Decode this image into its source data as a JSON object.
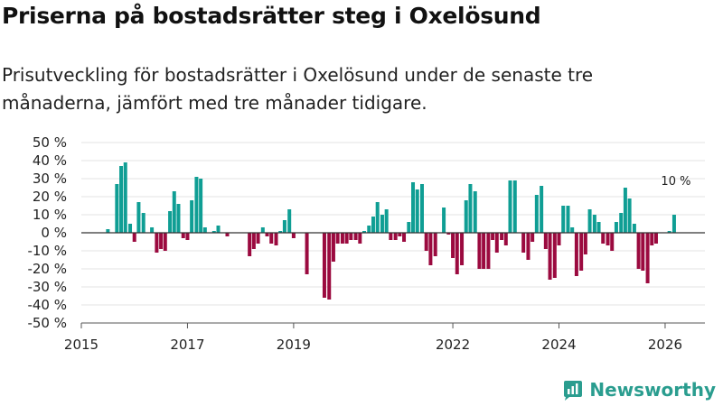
{
  "header": {
    "title": "Priserna på bostadsrätter steg i Oxelösund",
    "subtitle": "Prisutveckling för bostadsrätter i Oxelösund under de senaste tre månaderna, jämfört med tre månader tidigare."
  },
  "brand": {
    "name": "Newsworthy",
    "icon": "newsworthy-logo-icon",
    "color": "#2a9d8f"
  },
  "colors": {
    "positive": "#0f9e94",
    "negative": "#9b0a3f",
    "grid": "#e3e3e3",
    "zero_line": "#333333"
  },
  "chart_data": {
    "type": "bar",
    "title": "Priserna på bostadsrätter steg i Oxelösund",
    "xlabel": "",
    "ylabel": "",
    "ylim": [
      -50,
      50
    ],
    "yticks": [
      50,
      40,
      30,
      20,
      10,
      0,
      -10,
      -20,
      -30,
      -40,
      -50
    ],
    "ytick_suffix": " %",
    "xlim": [
      2015.0,
      2026.75
    ],
    "xticks": [
      2015,
      2017,
      2019,
      2022,
      2024,
      2026
    ],
    "grid": true,
    "annotation": {
      "text": "10 %",
      "x": 2026.17,
      "y": 10
    },
    "x": [
      2015.5,
      2015.67,
      2015.75,
      2015.83,
      2015.92,
      2016.0,
      2016.08,
      2016.17,
      2016.25,
      2016.33,
      2016.42,
      2016.5,
      2016.58,
      2016.67,
      2016.75,
      2016.83,
      2016.92,
      2017.0,
      2017.08,
      2017.17,
      2017.25,
      2017.33,
      2017.42,
      2017.5,
      2017.58,
      2017.67,
      2017.75,
      2018.17,
      2018.25,
      2018.33,
      2018.42,
      2018.5,
      2018.58,
      2018.67,
      2018.75,
      2018.83,
      2018.92,
      2019.0,
      2019.08,
      2019.25,
      2019.58,
      2019.67,
      2019.75,
      2019.83,
      2019.92,
      2020.0,
      2020.08,
      2020.17,
      2020.25,
      2020.33,
      2020.42,
      2020.5,
      2020.58,
      2020.67,
      2020.75,
      2020.83,
      2020.92,
      2021.0,
      2021.08,
      2021.17,
      2021.25,
      2021.33,
      2021.42,
      2021.5,
      2021.58,
      2021.67,
      2021.75,
      2021.83,
      2021.92,
      2022.0,
      2022.08,
      2022.17,
      2022.25,
      2022.33,
      2022.42,
      2022.5,
      2022.58,
      2022.67,
      2022.75,
      2022.83,
      2022.92,
      2023.0,
      2023.08,
      2023.17,
      2023.25,
      2023.33,
      2023.42,
      2023.5,
      2023.58,
      2023.67,
      2023.75,
      2023.83,
      2023.92,
      2024.0,
      2024.08,
      2024.17,
      2024.25,
      2024.33,
      2024.42,
      2024.5,
      2024.58,
      2024.67,
      2024.75,
      2024.83,
      2024.92,
      2025.0,
      2025.08,
      2025.17,
      2025.25,
      2025.33,
      2025.42,
      2025.5,
      2025.58,
      2025.67,
      2025.75,
      2025.83,
      2025.92,
      2026.0,
      2026.08,
      2026.17
    ],
    "values": [
      2,
      27,
      37,
      39,
      5,
      -5,
      17,
      11,
      0,
      3,
      -11,
      -9,
      -10,
      12,
      23,
      16,
      -3,
      -4,
      18,
      31,
      30,
      3,
      0,
      1,
      4,
      0,
      -2,
      -13,
      -9,
      -6,
      3,
      -2,
      -6,
      -7,
      1,
      7,
      13,
      -3,
      0,
      -23,
      -36,
      -37,
      -16,
      -6,
      -6,
      -6,
      -4,
      -4,
      -6,
      1,
      4,
      9,
      17,
      10,
      13,
      -4,
      -4,
      -2,
      -5,
      6,
      28,
      24,
      27,
      -10,
      -18,
      -13,
      0,
      14,
      -1,
      -14,
      -23,
      -18,
      18,
      27,
      23,
      -20,
      -20,
      -20,
      -4,
      -11,
      -4,
      -7,
      29,
      29,
      0,
      -11,
      -15,
      -5,
      21,
      26,
      -9,
      -26,
      -25,
      -7,
      15,
      15,
      3,
      -24,
      -21,
      -12,
      13,
      10,
      6,
      -6,
      -7,
      -10,
      6,
      11,
      25,
      19,
      5,
      -20,
      -21,
      -28,
      -7,
      -6,
      0,
      0,
      1,
      10
    ]
  }
}
